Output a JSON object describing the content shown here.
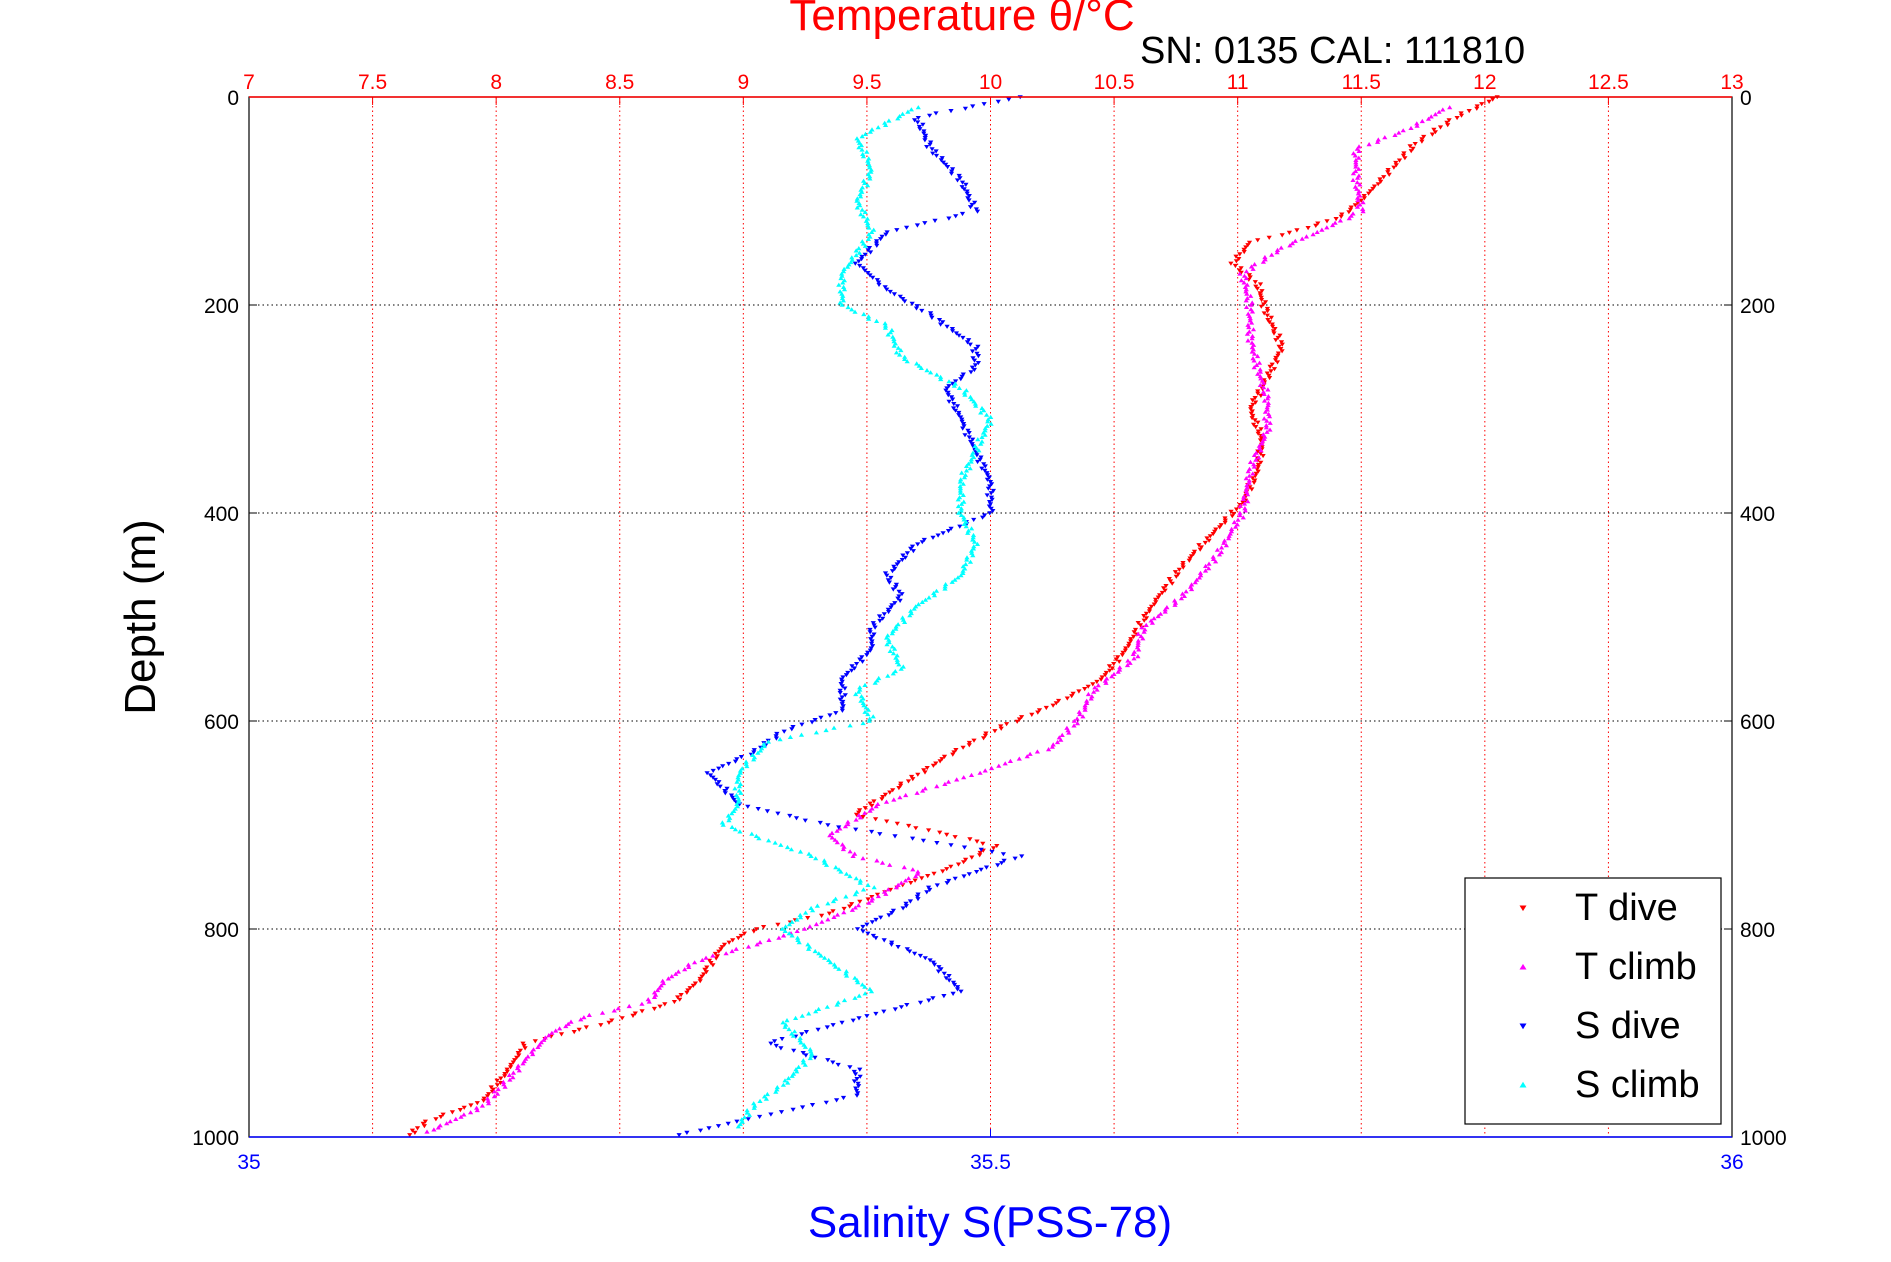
{
  "chart_data": {
    "type": "scatter",
    "title": "Temperature θ/°C",
    "subtitle": "SN: 0135  CAL: 111810",
    "xlabel_bottom": "Salinity S(PSS-78)",
    "xlabel_top": "Temperature θ/°C",
    "ylabel": "Depth (m)",
    "ylim": [
      0,
      1000
    ],
    "y_reversed": true,
    "top_axis": {
      "lim": [
        7,
        13
      ],
      "ticks": [
        "7",
        "7.5",
        "8",
        "8.5",
        "9",
        "9.5",
        "10",
        "10.5",
        "11",
        "11.5",
        "12",
        "12.5",
        "13"
      ],
      "color": "#ff0000"
    },
    "bottom_axis": {
      "lim": [
        35,
        36
      ],
      "ticks": [
        "35",
        "35.5",
        "36"
      ],
      "color": "#0000ff"
    },
    "y_ticks": [
      "0",
      "200",
      "400",
      "600",
      "800",
      "1000"
    ],
    "grid": true,
    "legend_position": "bottom-right",
    "series": [
      {
        "name": "T dive",
        "axis": "temperature",
        "color": "#ff0000",
        "marker": "triangle-down",
        "points": [
          [
            12.05,
            0
          ],
          [
            11.88,
            20
          ],
          [
            11.72,
            45
          ],
          [
            11.62,
            70
          ],
          [
            11.52,
            95
          ],
          [
            11.42,
            115
          ],
          [
            11.25,
            128
          ],
          [
            11.05,
            140
          ],
          [
            10.98,
            160
          ],
          [
            11.08,
            180
          ],
          [
            11.12,
            210
          ],
          [
            11.18,
            240
          ],
          [
            11.12,
            270
          ],
          [
            11.05,
            300
          ],
          [
            11.1,
            330
          ],
          [
            11.08,
            360
          ],
          [
            11.02,
            390
          ],
          [
            10.9,
            420
          ],
          [
            10.78,
            450
          ],
          [
            10.65,
            490
          ],
          [
            10.55,
            530
          ],
          [
            10.45,
            560
          ],
          [
            10.25,
            585
          ],
          [
            10.05,
            605
          ],
          [
            9.85,
            630
          ],
          [
            9.65,
            660
          ],
          [
            9.45,
            690
          ],
          [
            9.75,
            705
          ],
          [
            10.02,
            720
          ],
          [
            9.85,
            740
          ],
          [
            9.62,
            760
          ],
          [
            9.35,
            785
          ],
          [
            9.05,
            800
          ],
          [
            8.92,
            815
          ],
          [
            8.82,
            850
          ],
          [
            8.72,
            870
          ],
          [
            8.45,
            890
          ],
          [
            8.12,
            910
          ],
          [
            8.05,
            935
          ],
          [
            7.95,
            965
          ],
          [
            7.72,
            985
          ],
          [
            7.65,
            998
          ]
        ]
      },
      {
        "name": "T climb",
        "axis": "temperature",
        "color": "#ff00ff",
        "marker": "triangle-up",
        "points": [
          [
            11.85,
            10
          ],
          [
            11.7,
            30
          ],
          [
            11.48,
            50
          ],
          [
            11.48,
            80
          ],
          [
            11.5,
            110
          ],
          [
            11.32,
            130
          ],
          [
            11.18,
            145
          ],
          [
            11.02,
            170
          ],
          [
            11.05,
            200
          ],
          [
            11.05,
            230
          ],
          [
            11.08,
            260
          ],
          [
            11.12,
            290
          ],
          [
            11.12,
            320
          ],
          [
            11.05,
            360
          ],
          [
            11.02,
            400
          ],
          [
            10.92,
            440
          ],
          [
            10.78,
            480
          ],
          [
            10.62,
            510
          ],
          [
            10.58,
            540
          ],
          [
            10.42,
            570
          ],
          [
            10.35,
            600
          ],
          [
            10.25,
            625
          ],
          [
            9.95,
            650
          ],
          [
            9.55,
            680
          ],
          [
            9.35,
            710
          ],
          [
            9.45,
            730
          ],
          [
            9.72,
            745
          ],
          [
            9.5,
            775
          ],
          [
            9.25,
            800
          ],
          [
            9.05,
            815
          ],
          [
            8.82,
            830
          ],
          [
            8.68,
            850
          ],
          [
            8.62,
            870
          ],
          [
            8.35,
            885
          ],
          [
            8.22,
            900
          ],
          [
            8.12,
            925
          ],
          [
            8.05,
            945
          ],
          [
            7.95,
            970
          ],
          [
            7.82,
            985
          ],
          [
            7.72,
            995
          ]
        ]
      },
      {
        "name": "S dive",
        "axis": "salinity",
        "color": "#0000ff",
        "marker": "triangle-down",
        "points": [
          [
            35.52,
            0
          ],
          [
            35.45,
            20
          ],
          [
            35.46,
            50
          ],
          [
            35.48,
            80
          ],
          [
            35.49,
            110
          ],
          [
            35.43,
            130
          ],
          [
            35.41,
            160
          ],
          [
            35.43,
            185
          ],
          [
            35.46,
            210
          ],
          [
            35.49,
            240
          ],
          [
            35.49,
            260
          ],
          [
            35.47,
            280
          ],
          [
            35.48,
            310
          ],
          [
            35.49,
            340
          ],
          [
            35.5,
            370
          ],
          [
            35.5,
            400
          ],
          [
            35.45,
            430
          ],
          [
            35.43,
            460
          ],
          [
            35.44,
            480
          ],
          [
            35.42,
            510
          ],
          [
            35.42,
            530
          ],
          [
            35.4,
            560
          ],
          [
            35.4,
            590
          ],
          [
            35.36,
            610
          ],
          [
            35.34,
            630
          ],
          [
            35.31,
            650
          ],
          [
            35.33,
            680
          ],
          [
            35.39,
            700
          ],
          [
            35.52,
            730
          ],
          [
            35.46,
            760
          ],
          [
            35.44,
            780
          ],
          [
            35.41,
            800
          ],
          [
            35.46,
            830
          ],
          [
            35.48,
            860
          ],
          [
            35.4,
            890
          ],
          [
            35.35,
            910
          ],
          [
            35.41,
            935
          ],
          [
            35.41,
            960
          ],
          [
            35.33,
            985
          ],
          [
            35.29,
            998
          ]
        ]
      },
      {
        "name": "S climb",
        "axis": "salinity",
        "color": "#00ffff",
        "marker": "triangle-up",
        "points": [
          [
            35.45,
            10
          ],
          [
            35.41,
            40
          ],
          [
            35.42,
            70
          ],
          [
            35.41,
            100
          ],
          [
            35.42,
            130
          ],
          [
            35.4,
            170
          ],
          [
            35.4,
            200
          ],
          [
            35.43,
            220
          ],
          [
            35.44,
            250
          ],
          [
            35.48,
            280
          ],
          [
            35.5,
            310
          ],
          [
            35.49,
            340
          ],
          [
            35.48,
            370
          ],
          [
            35.48,
            400
          ],
          [
            35.49,
            430
          ],
          [
            35.48,
            460
          ],
          [
            35.45,
            490
          ],
          [
            35.43,
            520
          ],
          [
            35.44,
            550
          ],
          [
            35.41,
            570
          ],
          [
            35.42,
            600
          ],
          [
            35.35,
            620
          ],
          [
            35.33,
            650
          ],
          [
            35.33,
            680
          ],
          [
            35.32,
            700
          ],
          [
            35.38,
            730
          ],
          [
            35.42,
            760
          ],
          [
            35.38,
            780
          ],
          [
            35.36,
            800
          ],
          [
            35.39,
            830
          ],
          [
            35.42,
            860
          ],
          [
            35.36,
            890
          ],
          [
            35.38,
            920
          ],
          [
            35.36,
            950
          ],
          [
            35.34,
            970
          ],
          [
            35.33,
            990
          ]
        ]
      }
    ]
  }
}
